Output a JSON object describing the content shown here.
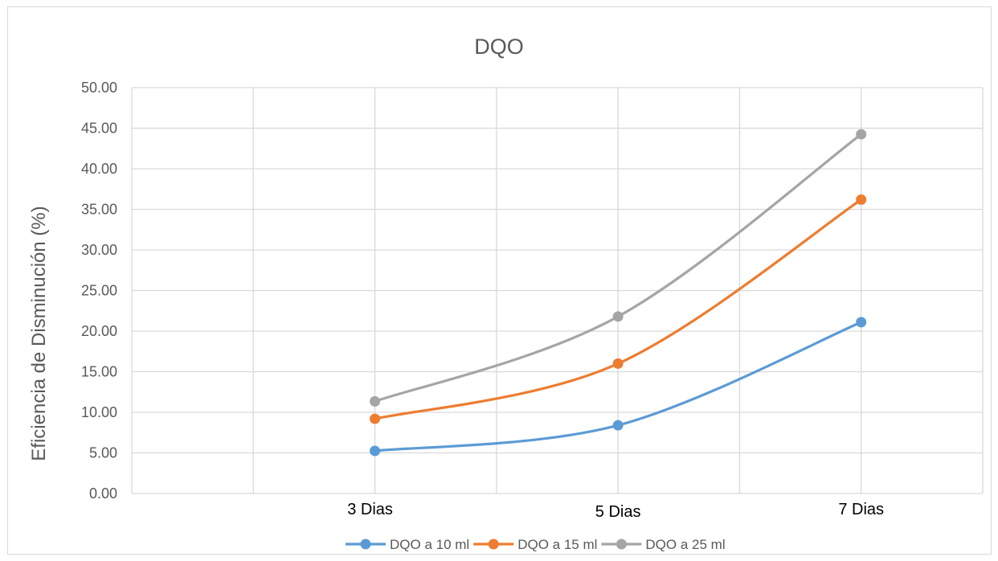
{
  "chart_data": {
    "type": "line",
    "title": "DQO",
    "xlabel": "",
    "ylabel": "Eficiencia de Disminución (%)",
    "ylim": [
      0,
      50
    ],
    "y_ticks": [
      "0.00",
      "5.00",
      "10.00",
      "15.00",
      "20.00",
      "25.00",
      "30.00",
      "35.00",
      "40.00",
      "45.00",
      "50.00"
    ],
    "categories": [
      "3 Dias",
      "5 Dias",
      "7 Dias"
    ],
    "grid": true,
    "legend_position": "bottom",
    "series": [
      {
        "name": "DQO a 10 ml",
        "color": "#5b9bd5",
        "values": [
          5.25,
          8.4,
          21.1
        ]
      },
      {
        "name": "DQO a 15 ml",
        "color": "#ed7d31",
        "values": [
          9.2,
          16.0,
          36.2
        ]
      },
      {
        "name": "DQO a 25 ml",
        "color": "#a5a5a5",
        "values": [
          11.35,
          21.8,
          44.25
        ]
      }
    ]
  }
}
